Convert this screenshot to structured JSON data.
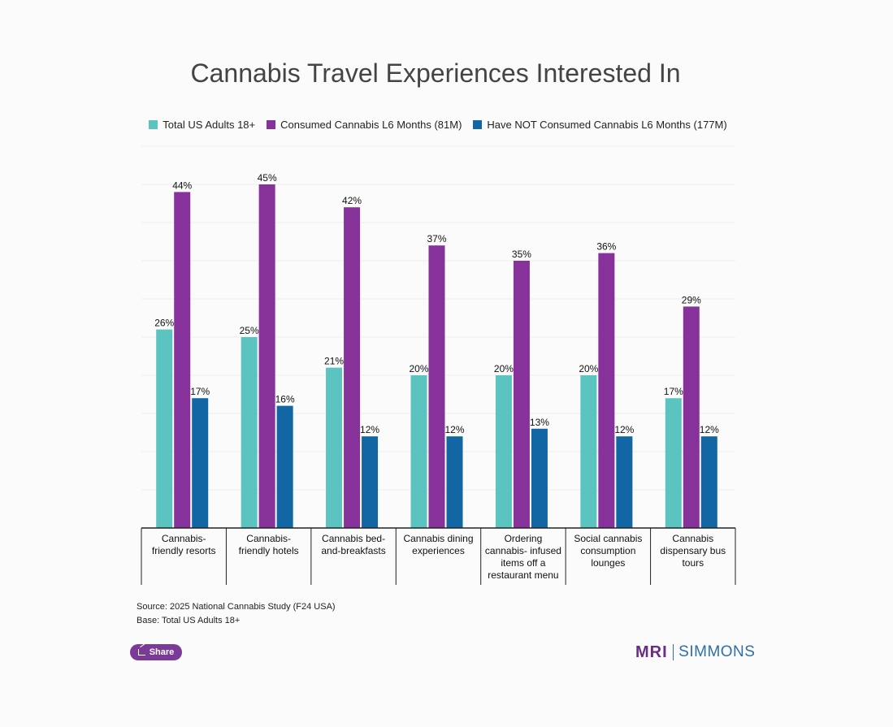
{
  "chart_data": {
    "type": "bar",
    "title": "Cannabis Travel Experiences Interested In",
    "categories": [
      [
        "Cannabis-",
        "friendly resorts"
      ],
      [
        "Cannabis-",
        "friendly hotels"
      ],
      [
        "Cannabis bed-",
        "and-breakfasts"
      ],
      [
        "Cannabis dining",
        "experiences"
      ],
      [
        "Ordering",
        "cannabis- infused",
        "items off a",
        "restaurant menu"
      ],
      [
        "Social cannabis",
        "consumption",
        "lounges"
      ],
      [
        "Cannabis",
        "dispensary bus",
        "tours"
      ]
    ],
    "series": [
      {
        "name": "Total US Adults 18+",
        "color": "#5bc4c0",
        "values": [
          26,
          25,
          21,
          20,
          20,
          20,
          17
        ]
      },
      {
        "name": "Consumed Cannabis L6 Months (81M)",
        "color": "#87329a",
        "values": [
          44,
          45,
          42,
          37,
          35,
          36,
          29
        ]
      },
      {
        "name": "Have NOT Consumed Cannabis L6 Months (177M)",
        "color": "#1166a3",
        "values": [
          17,
          16,
          12,
          12,
          13,
          12,
          12
        ]
      }
    ],
    "value_suffix": "%",
    "ylim": [
      0,
      50
    ],
    "grid": true,
    "legend_position": "top"
  },
  "footer": {
    "source": "Source: 2025 National Cannabis Study (F24 USA)",
    "base": "Base: Total US Adults 18+"
  },
  "share": {
    "label": "Share",
    "icon": "share-icon"
  },
  "logo": {
    "left": "MRI",
    "right": "SIMMONS"
  }
}
